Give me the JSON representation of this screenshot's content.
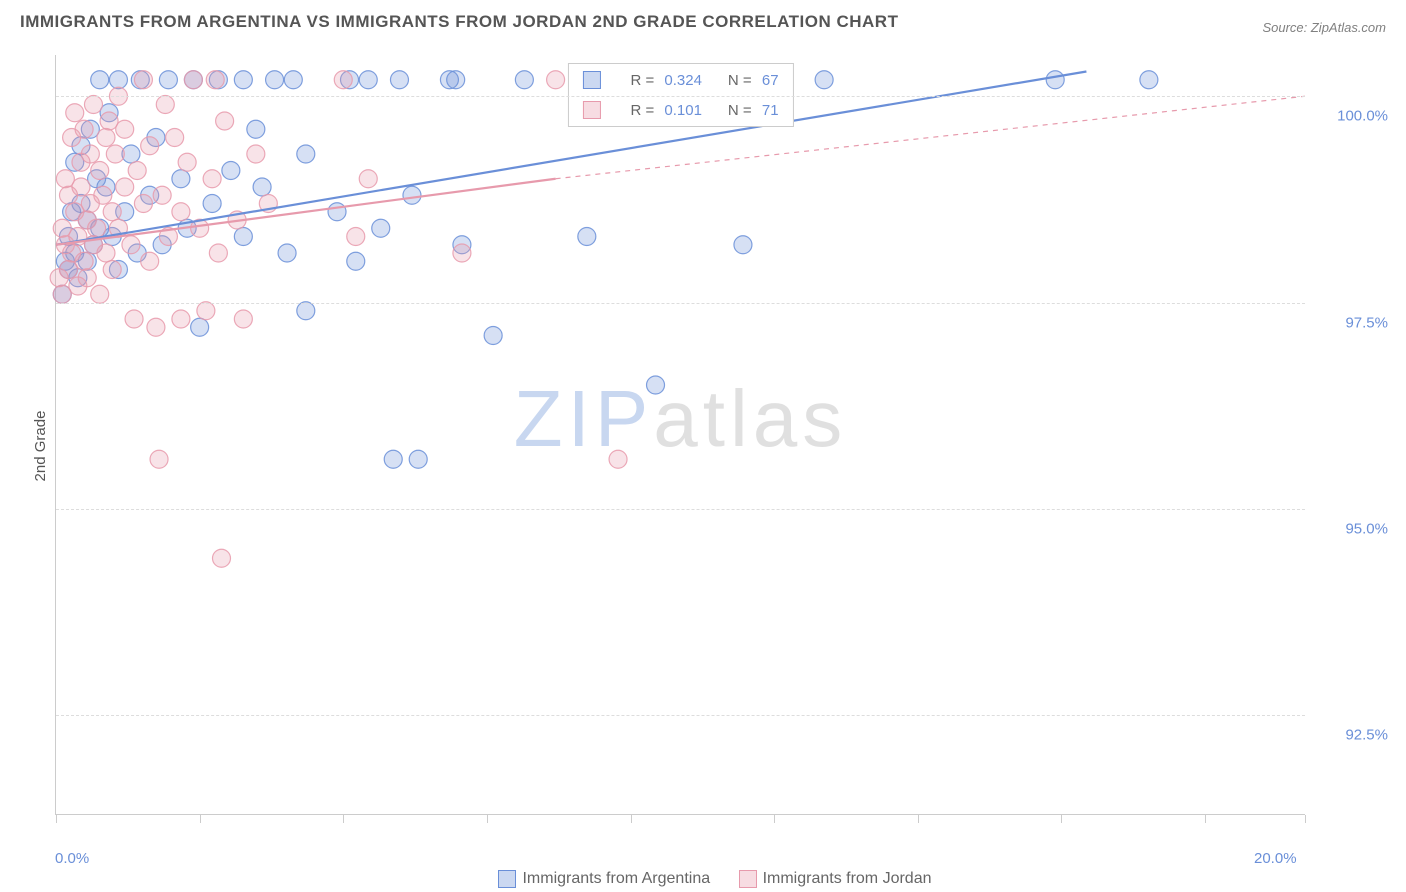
{
  "title": "IMMIGRANTS FROM ARGENTINA VS IMMIGRANTS FROM JORDAN 2ND GRADE CORRELATION CHART",
  "source_prefix": "Source: ",
  "source_name": "ZipAtlas.com",
  "yaxis_label": "2nd Grade",
  "watermark_part1": "ZIP",
  "watermark_part2": "atlas",
  "chart": {
    "type": "scatter",
    "xlim": [
      0.0,
      20.0
    ],
    "ylim": [
      91.3,
      100.5
    ],
    "y_ticks": [
      92.5,
      95.0,
      97.5,
      100.0
    ],
    "y_tick_labels": [
      "92.5%",
      "95.0%",
      "97.5%",
      "100.0%"
    ],
    "x_ticks": [
      0.0,
      2.3,
      4.6,
      6.9,
      9.2,
      11.5,
      13.8,
      16.1,
      18.4,
      20.0
    ],
    "x_tick_labels_shown": {
      "0.0": "0.0%",
      "20.0": "20.0%"
    },
    "grid_color": "#dddddd",
    "background_color": "#ffffff",
    "marker_radius": 9,
    "marker_fill_opacity": 0.28,
    "marker_stroke_opacity": 0.85,
    "marker_stroke_width": 1.2,
    "series": [
      {
        "name": "Immigrants from Argentina",
        "color": "#6a8fd8",
        "R": "0.324",
        "N": "67",
        "trend": {
          "x1": 0.0,
          "y1": 98.2,
          "x2": 16.5,
          "y2": 100.3,
          "dash": false,
          "width": 2.2
        },
        "points": [
          [
            0.1,
            97.6
          ],
          [
            0.15,
            98.0
          ],
          [
            0.2,
            98.3
          ],
          [
            0.2,
            97.9
          ],
          [
            0.25,
            98.6
          ],
          [
            0.3,
            98.1
          ],
          [
            0.3,
            99.2
          ],
          [
            0.35,
            97.8
          ],
          [
            0.4,
            98.7
          ],
          [
            0.4,
            99.4
          ],
          [
            0.5,
            98.0
          ],
          [
            0.5,
            98.5
          ],
          [
            0.55,
            99.6
          ],
          [
            0.6,
            98.2
          ],
          [
            0.65,
            99.0
          ],
          [
            0.7,
            98.4
          ],
          [
            0.7,
            100.2
          ],
          [
            0.8,
            98.9
          ],
          [
            0.85,
            99.8
          ],
          [
            0.9,
            98.3
          ],
          [
            1.0,
            97.9
          ],
          [
            1.0,
            100.2
          ],
          [
            1.1,
            98.6
          ],
          [
            1.2,
            99.3
          ],
          [
            1.3,
            98.1
          ],
          [
            1.35,
            100.2
          ],
          [
            1.5,
            98.8
          ],
          [
            1.6,
            99.5
          ],
          [
            1.7,
            98.2
          ],
          [
            1.8,
            100.2
          ],
          [
            2.0,
            99.0
          ],
          [
            2.1,
            98.4
          ],
          [
            2.2,
            100.2
          ],
          [
            2.3,
            97.2
          ],
          [
            2.5,
            98.7
          ],
          [
            2.6,
            100.2
          ],
          [
            2.8,
            99.1
          ],
          [
            3.0,
            98.3
          ],
          [
            3.0,
            100.2
          ],
          [
            3.2,
            99.6
          ],
          [
            3.3,
            98.9
          ],
          [
            3.5,
            100.2
          ],
          [
            3.7,
            98.1
          ],
          [
            3.8,
            100.2
          ],
          [
            4.0,
            99.3
          ],
          [
            4.0,
            97.4
          ],
          [
            4.5,
            98.6
          ],
          [
            4.7,
            100.2
          ],
          [
            4.8,
            98.0
          ],
          [
            5.0,
            100.2
          ],
          [
            5.2,
            98.4
          ],
          [
            5.4,
            95.6
          ],
          [
            5.5,
            100.2
          ],
          [
            5.7,
            98.8
          ],
          [
            5.8,
            95.6
          ],
          [
            6.3,
            100.2
          ],
          [
            6.4,
            100.2
          ],
          [
            6.5,
            98.2
          ],
          [
            7.0,
            97.1
          ],
          [
            7.5,
            100.2
          ],
          [
            8.5,
            98.3
          ],
          [
            9.6,
            96.5
          ],
          [
            10.5,
            100.2
          ],
          [
            11.0,
            98.2
          ],
          [
            12.3,
            100.2
          ],
          [
            16.0,
            100.2
          ],
          [
            17.5,
            100.2
          ]
        ]
      },
      {
        "name": "Immigrants from Jordan",
        "color": "#e79aac",
        "R": "0.101",
        "N": "71",
        "trend": {
          "x1": 0.0,
          "y1": 98.2,
          "x2": 8.0,
          "y2": 99.0,
          "dash": false,
          "width": 2.2
        },
        "trend_ext": {
          "x1": 8.0,
          "y1": 99.0,
          "x2": 20.0,
          "y2": 100.0,
          "dash": true,
          "width": 1.2
        },
        "points": [
          [
            0.05,
            97.8
          ],
          [
            0.1,
            98.4
          ],
          [
            0.1,
            97.6
          ],
          [
            0.15,
            99.0
          ],
          [
            0.15,
            98.2
          ],
          [
            0.2,
            98.8
          ],
          [
            0.2,
            97.9
          ],
          [
            0.25,
            99.5
          ],
          [
            0.25,
            98.1
          ],
          [
            0.3,
            98.6
          ],
          [
            0.3,
            99.8
          ],
          [
            0.35,
            98.3
          ],
          [
            0.35,
            97.7
          ],
          [
            0.4,
            99.2
          ],
          [
            0.4,
            98.9
          ],
          [
            0.45,
            98.0
          ],
          [
            0.45,
            99.6
          ],
          [
            0.5,
            98.5
          ],
          [
            0.5,
            97.8
          ],
          [
            0.55,
            99.3
          ],
          [
            0.55,
            98.7
          ],
          [
            0.6,
            98.2
          ],
          [
            0.6,
            99.9
          ],
          [
            0.65,
            98.4
          ],
          [
            0.7,
            99.1
          ],
          [
            0.7,
            97.6
          ],
          [
            0.75,
            98.8
          ],
          [
            0.8,
            99.5
          ],
          [
            0.8,
            98.1
          ],
          [
            0.85,
            99.7
          ],
          [
            0.9,
            98.6
          ],
          [
            0.9,
            97.9
          ],
          [
            0.95,
            99.3
          ],
          [
            1.0,
            98.4
          ],
          [
            1.0,
            100.0
          ],
          [
            1.1,
            98.9
          ],
          [
            1.1,
            99.6
          ],
          [
            1.2,
            98.2
          ],
          [
            1.25,
            97.3
          ],
          [
            1.3,
            99.1
          ],
          [
            1.4,
            98.7
          ],
          [
            1.4,
            100.2
          ],
          [
            1.5,
            98.0
          ],
          [
            1.5,
            99.4
          ],
          [
            1.6,
            97.2
          ],
          [
            1.7,
            98.8
          ],
          [
            1.75,
            99.9
          ],
          [
            1.8,
            98.3
          ],
          [
            1.9,
            99.5
          ],
          [
            2.0,
            98.6
          ],
          [
            2.0,
            97.3
          ],
          [
            2.1,
            99.2
          ],
          [
            2.2,
            100.2
          ],
          [
            2.3,
            98.4
          ],
          [
            2.4,
            97.4
          ],
          [
            2.5,
            99.0
          ],
          [
            2.55,
            100.2
          ],
          [
            2.6,
            98.1
          ],
          [
            2.65,
            94.4
          ],
          [
            2.7,
            99.7
          ],
          [
            1.65,
            95.6
          ],
          [
            2.9,
            98.5
          ],
          [
            3.0,
            97.3
          ],
          [
            3.2,
            99.3
          ],
          [
            3.4,
            98.7
          ],
          [
            4.6,
            100.2
          ],
          [
            4.8,
            98.3
          ],
          [
            5.0,
            99.0
          ],
          [
            6.5,
            98.1
          ],
          [
            8.0,
            100.2
          ],
          [
            9.0,
            95.6
          ]
        ]
      }
    ],
    "legend_labels": {
      "R_prefix": "R =",
      "N_prefix": "N ="
    }
  }
}
